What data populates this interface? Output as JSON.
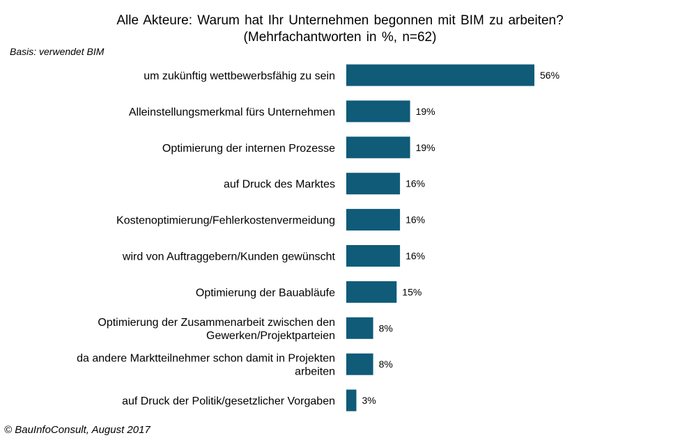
{
  "title_line1": "Alle Akteure: Warum hat Ihr Unternehmen begonnen mit BIM zu arbeiten?",
  "title_line2": "(Mehrfachantworten in %, n=62)",
  "basis": "Basis: verwendet BIM",
  "footer": "© BauInfoConsult, August 2017",
  "colors": {
    "bar": "#0f5b78"
  },
  "chart_data": {
    "type": "bar",
    "orientation": "horizontal",
    "title": "Alle Akteure: Warum hat Ihr Unternehmen begonnen mit BIM zu arbeiten? (Mehrfachantworten in %, n=62)",
    "categories": [
      [
        "um zukünftig wettbewerbsfähig zu sein"
      ],
      [
        "Alleinstellungsmerkmal fürs Unternehmen"
      ],
      [
        "Optimierung der internen Prozesse"
      ],
      [
        "auf Druck des Marktes"
      ],
      [
        "Kostenoptimierung/Fehlerkostenvermeidung"
      ],
      [
        "wird von Auftraggebern/Kunden gewünscht"
      ],
      [
        "Optimierung der Bauabläufe"
      ],
      [
        "Optimierung der Zusammenarbeit zwischen den",
        "Gewerken/Projektparteien"
      ],
      [
        "da andere Marktteilnehmer schon damit in Projekten",
        "arbeiten"
      ],
      [
        "auf Druck der Politik/gesetzlicher Vorgaben"
      ]
    ],
    "values": [
      56,
      19,
      19,
      16,
      16,
      16,
      15,
      8,
      8,
      3
    ],
    "value_labels": [
      "56%",
      "19%",
      "19%",
      "16%",
      "16%",
      "16%",
      "15%",
      "8%",
      "8%",
      "3%"
    ],
    "xlim": [
      0,
      56
    ],
    "grid": false,
    "legend": "none"
  }
}
